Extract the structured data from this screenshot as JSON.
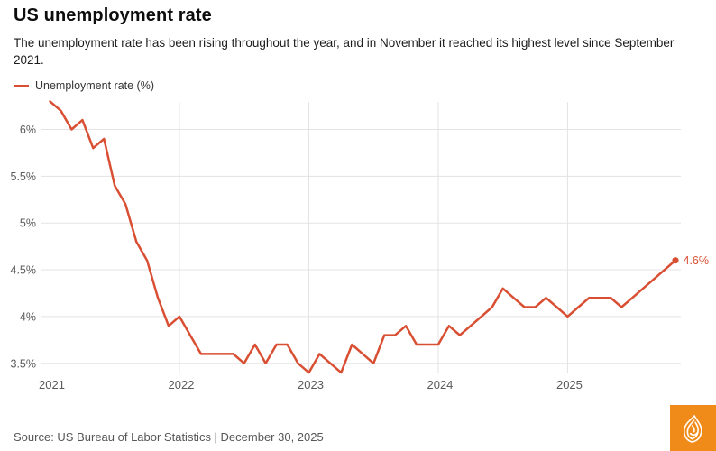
{
  "header": {
    "title": "US unemployment rate",
    "subtitle": "The unemployment rate has been rising throughout the year, and in November it reached its highest level since September 2021."
  },
  "legend": {
    "label": "Unemployment rate (%)"
  },
  "footer": {
    "source": "Source: US Bureau of Labor Statistics | December 30, 2025"
  },
  "branding": {
    "background_color": "#f08a18",
    "glyph_color": "#ffffff"
  },
  "chart_data": {
    "type": "line",
    "title": "US unemployment rate",
    "x_domain": [
      "2021-01",
      "2025-11"
    ],
    "x_interval": "month",
    "ylim": [
      3.4,
      6.3
    ],
    "grid": true,
    "legend_position": "top-left",
    "series": [
      {
        "name": "Unemployment rate (%)",
        "color": "#d94f33",
        "values": [
          6.3,
          6.2,
          6.0,
          6.1,
          5.8,
          5.9,
          5.4,
          5.2,
          4.8,
          4.6,
          4.2,
          3.9,
          4.0,
          3.8,
          3.6,
          3.6,
          3.6,
          3.6,
          3.5,
          3.7,
          3.5,
          3.7,
          3.7,
          3.5,
          3.4,
          3.6,
          3.5,
          3.4,
          3.7,
          3.6,
          3.5,
          3.8,
          3.8,
          3.9,
          3.7,
          3.7,
          3.7,
          3.9,
          3.8,
          3.9,
          4.0,
          4.1,
          4.3,
          4.2,
          4.1,
          4.1,
          4.2,
          4.1,
          4.0,
          4.1,
          4.2,
          4.2,
          4.2,
          4.1,
          4.2,
          4.3,
          4.4,
          4.5,
          4.6
        ]
      }
    ],
    "y_ticks": [
      {
        "value": 3.5,
        "label": "3.5%"
      },
      {
        "value": 4.0,
        "label": "4%"
      },
      {
        "value": 4.5,
        "label": "4.5%"
      },
      {
        "value": 5.0,
        "label": "5%"
      },
      {
        "value": 5.5,
        "label": "5.5%"
      },
      {
        "value": 6.0,
        "label": "6%"
      }
    ],
    "x_ticks": [
      {
        "month_index": 0,
        "label": "2021"
      },
      {
        "month_index": 12,
        "label": "2022"
      },
      {
        "month_index": 24,
        "label": "2023"
      },
      {
        "month_index": 36,
        "label": "2024"
      },
      {
        "month_index": 48,
        "label": "2025"
      }
    ],
    "end_label": "4.6%"
  }
}
